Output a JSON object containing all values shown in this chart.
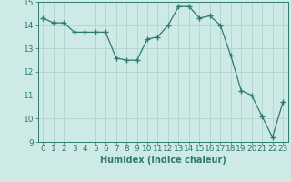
{
  "x": [
    0,
    1,
    2,
    3,
    4,
    5,
    6,
    7,
    8,
    9,
    10,
    11,
    12,
    13,
    14,
    15,
    16,
    17,
    18,
    19,
    20,
    21,
    22,
    23
  ],
  "y": [
    14.3,
    14.1,
    14.1,
    13.7,
    13.7,
    13.7,
    13.7,
    12.6,
    12.5,
    12.5,
    13.4,
    13.5,
    14.0,
    14.8,
    14.8,
    14.3,
    14.4,
    14.0,
    12.7,
    11.2,
    11.0,
    10.1,
    9.2,
    10.7
  ],
  "line_color": "#2d7a6e",
  "marker": "+",
  "marker_size": 4,
  "bg_color": "#ceeae6",
  "grid_color": "#b0d4ce",
  "xlabel": "Humidex (Indice chaleur)",
  "ylabel": "",
  "xlim": [
    -0.5,
    23.5
  ],
  "ylim": [
    9,
    15
  ],
  "yticks": [
    9,
    10,
    11,
    12,
    13,
    14,
    15
  ],
  "xticks": [
    0,
    1,
    2,
    3,
    4,
    5,
    6,
    7,
    8,
    9,
    10,
    11,
    12,
    13,
    14,
    15,
    16,
    17,
    18,
    19,
    20,
    21,
    22,
    23
  ],
  "xlabel_fontsize": 7,
  "tick_fontsize": 6.5
}
